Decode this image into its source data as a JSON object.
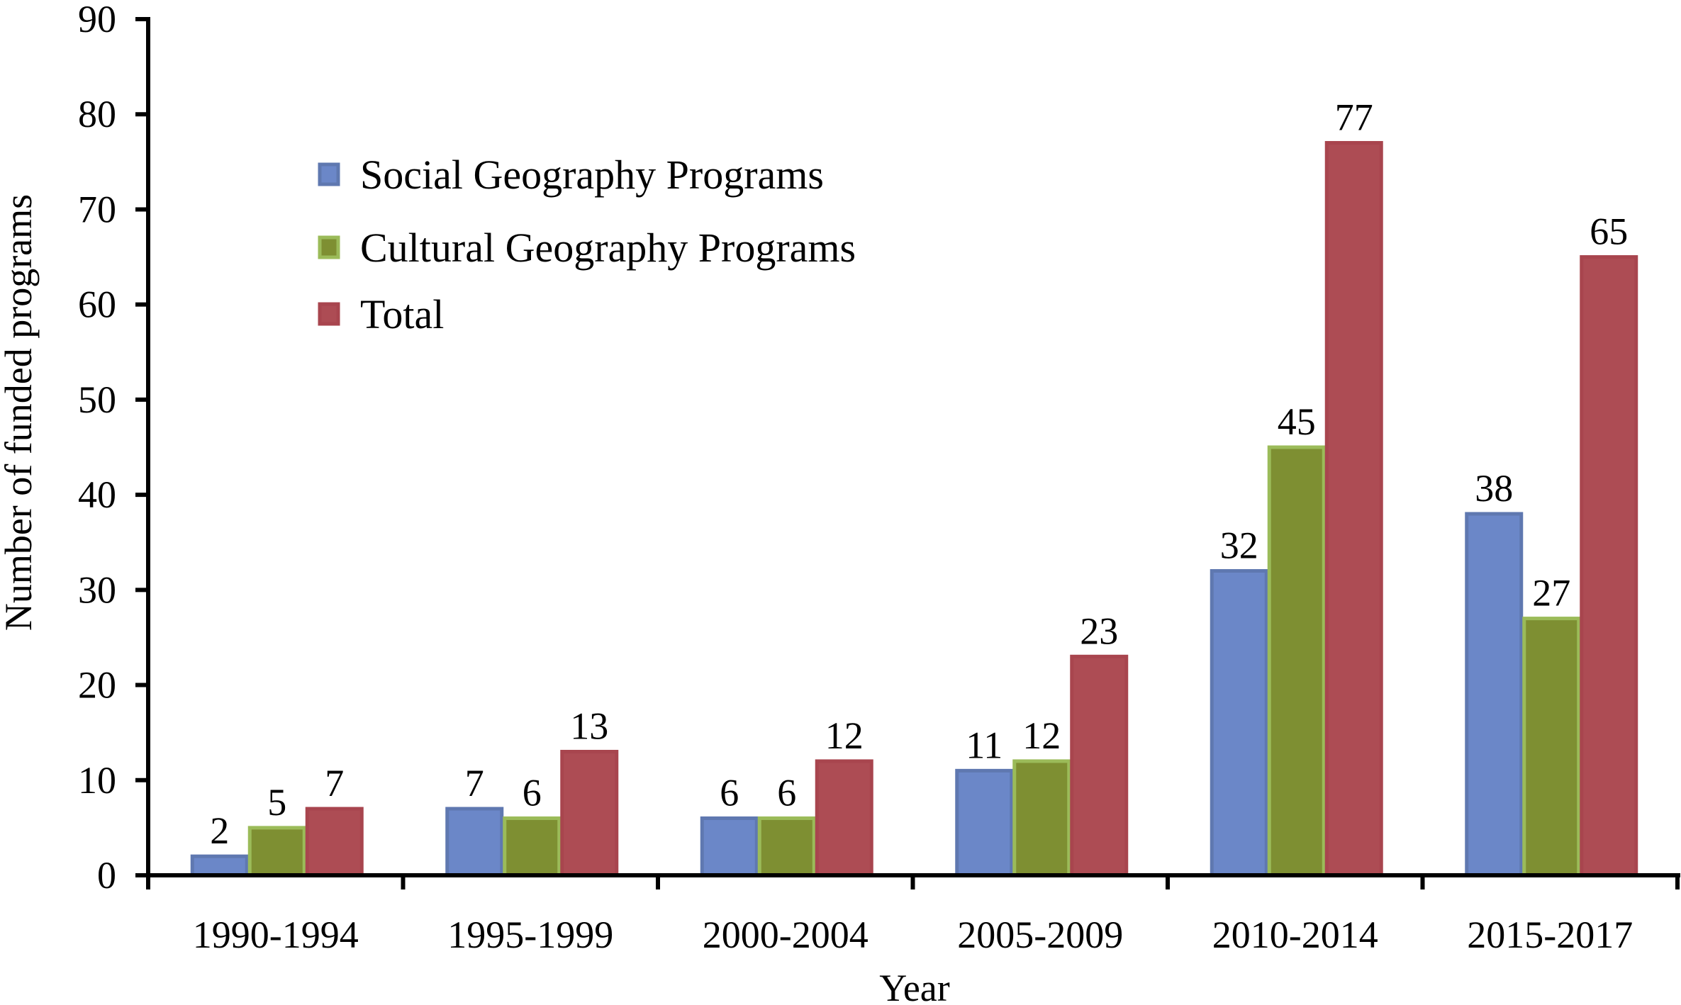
{
  "chart_data": {
    "type": "bar",
    "xlabel": "Year",
    "ylabel": "Number of funded programs",
    "ylim": [
      0,
      90
    ],
    "yticks": [
      0,
      10,
      20,
      30,
      40,
      50,
      60,
      70,
      80,
      90
    ],
    "grid": false,
    "legend_position": "top-left",
    "categories": [
      "1990-1994",
      "1995-1999",
      "2000-2004",
      "2005-2009",
      "2010-2014",
      "2015-2017"
    ],
    "series": [
      {
        "name": "Social Geography Programs",
        "values": [
          2,
          7,
          6,
          11,
          32,
          38
        ],
        "color": "#6b87c8",
        "border": "#5f78b0"
      },
      {
        "name": "Cultural Geography Programs",
        "values": [
          5,
          6,
          6,
          12,
          45,
          27
        ],
        "color": "#7e8f32",
        "border": "#9bbb59"
      },
      {
        "name": "Total",
        "values": [
          7,
          13,
          12,
          23,
          77,
          65
        ],
        "color": "#ad4c54",
        "border": "#a8454e"
      }
    ]
  }
}
